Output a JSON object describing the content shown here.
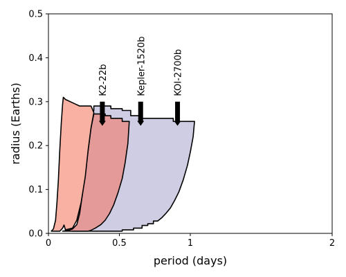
{
  "chart_data": {
    "type": "area",
    "xlabel": "period (days)",
    "ylabel": "radius (Earths)",
    "xlim": [
      0,
      2
    ],
    "ylim": [
      0,
      0.5
    ],
    "xticks": [
      0,
      0.5,
      1,
      2
    ],
    "xtick_labels": [
      "0",
      "0.5",
      "1",
      "2"
    ],
    "yticks": [
      0.0,
      0.1,
      0.2,
      0.3,
      0.4,
      0.5
    ],
    "ytick_labels": [
      "0.0",
      "0.1",
      "0.2",
      "0.3",
      "0.4",
      "0.5"
    ],
    "grid": false,
    "regions": [
      {
        "color": "#cfcde3",
        "points": [
          [
            0.3,
            0.005
          ],
          [
            0.52,
            0.005
          ],
          [
            0.52,
            0.008
          ],
          [
            0.6,
            0.008
          ],
          [
            0.6,
            0.012
          ],
          [
            0.66,
            0.012
          ],
          [
            0.66,
            0.018
          ],
          [
            0.7,
            0.018
          ],
          [
            0.7,
            0.022
          ],
          [
            0.74,
            0.022
          ],
          [
            0.74,
            0.028
          ],
          [
            0.77,
            0.028
          ],
          [
            0.8,
            0.036
          ],
          [
            0.83,
            0.046
          ],
          [
            0.86,
            0.058
          ],
          [
            0.89,
            0.075
          ],
          [
            0.92,
            0.095
          ],
          [
            0.95,
            0.122
          ],
          [
            0.98,
            0.155
          ],
          [
            1.0,
            0.185
          ],
          [
            1.02,
            0.22
          ],
          [
            1.03,
            0.255
          ],
          [
            0.88,
            0.255
          ],
          [
            0.88,
            0.262
          ],
          [
            0.65,
            0.262
          ],
          [
            0.65,
            0.268
          ],
          [
            0.58,
            0.268
          ],
          [
            0.58,
            0.28
          ],
          [
            0.52,
            0.28
          ],
          [
            0.52,
            0.284
          ],
          [
            0.44,
            0.284
          ],
          [
            0.44,
            0.29
          ],
          [
            0.32,
            0.29
          ],
          [
            0.32,
            0.28
          ],
          [
            0.28,
            0.24
          ],
          [
            0.26,
            0.17
          ],
          [
            0.24,
            0.09
          ],
          [
            0.22,
            0.04
          ],
          [
            0.2,
            0.01
          ],
          [
            0.17,
            0.005
          ]
        ]
      },
      {
        "color": "#e49a98",
        "points": [
          [
            0.1,
            0.005
          ],
          [
            0.28,
            0.005
          ],
          [
            0.3,
            0.007
          ],
          [
            0.33,
            0.012
          ],
          [
            0.37,
            0.02
          ],
          [
            0.4,
            0.03
          ],
          [
            0.43,
            0.045
          ],
          [
            0.46,
            0.065
          ],
          [
            0.49,
            0.092
          ],
          [
            0.52,
            0.125
          ],
          [
            0.54,
            0.16
          ],
          [
            0.56,
            0.205
          ],
          [
            0.57,
            0.255
          ],
          [
            0.52,
            0.255
          ],
          [
            0.52,
            0.262
          ],
          [
            0.44,
            0.262
          ],
          [
            0.44,
            0.268
          ],
          [
            0.4,
            0.268
          ],
          [
            0.4,
            0.272
          ],
          [
            0.32,
            0.272
          ],
          [
            0.3,
            0.24
          ],
          [
            0.28,
            0.19
          ],
          [
            0.26,
            0.14
          ],
          [
            0.24,
            0.09
          ],
          [
            0.22,
            0.045
          ],
          [
            0.2,
            0.02
          ],
          [
            0.17,
            0.01
          ],
          [
            0.14,
            0.007
          ]
        ]
      },
      {
        "color": "#f8b1a3",
        "points": [
          [
            0.02,
            0.005
          ],
          [
            0.08,
            0.005
          ],
          [
            0.1,
            0.012
          ],
          [
            0.11,
            0.019
          ],
          [
            0.12,
            0.008
          ],
          [
            0.17,
            0.012
          ],
          [
            0.2,
            0.03
          ],
          [
            0.23,
            0.07
          ],
          [
            0.26,
            0.13
          ],
          [
            0.28,
            0.19
          ],
          [
            0.3,
            0.24
          ],
          [
            0.32,
            0.275
          ],
          [
            0.3,
            0.29
          ],
          [
            0.22,
            0.29
          ],
          [
            0.18,
            0.296
          ],
          [
            0.14,
            0.302
          ],
          [
            0.12,
            0.305
          ],
          [
            0.105,
            0.31
          ],
          [
            0.1,
            0.295
          ],
          [
            0.09,
            0.25
          ],
          [
            0.08,
            0.19
          ],
          [
            0.07,
            0.12
          ],
          [
            0.06,
            0.07
          ],
          [
            0.05,
            0.03
          ],
          [
            0.035,
            0.01
          ]
        ]
      }
    ],
    "annotations": [
      {
        "label": "K2-22b",
        "x": 0.38,
        "y_top": 0.3,
        "y_bottom": 0.245
      },
      {
        "label": "Kepler-1520b",
        "x": 0.65,
        "y_top": 0.3,
        "y_bottom": 0.245
      },
      {
        "label": "KOI-2700b",
        "x": 0.91,
        "y_top": 0.3,
        "y_bottom": 0.245
      }
    ]
  }
}
